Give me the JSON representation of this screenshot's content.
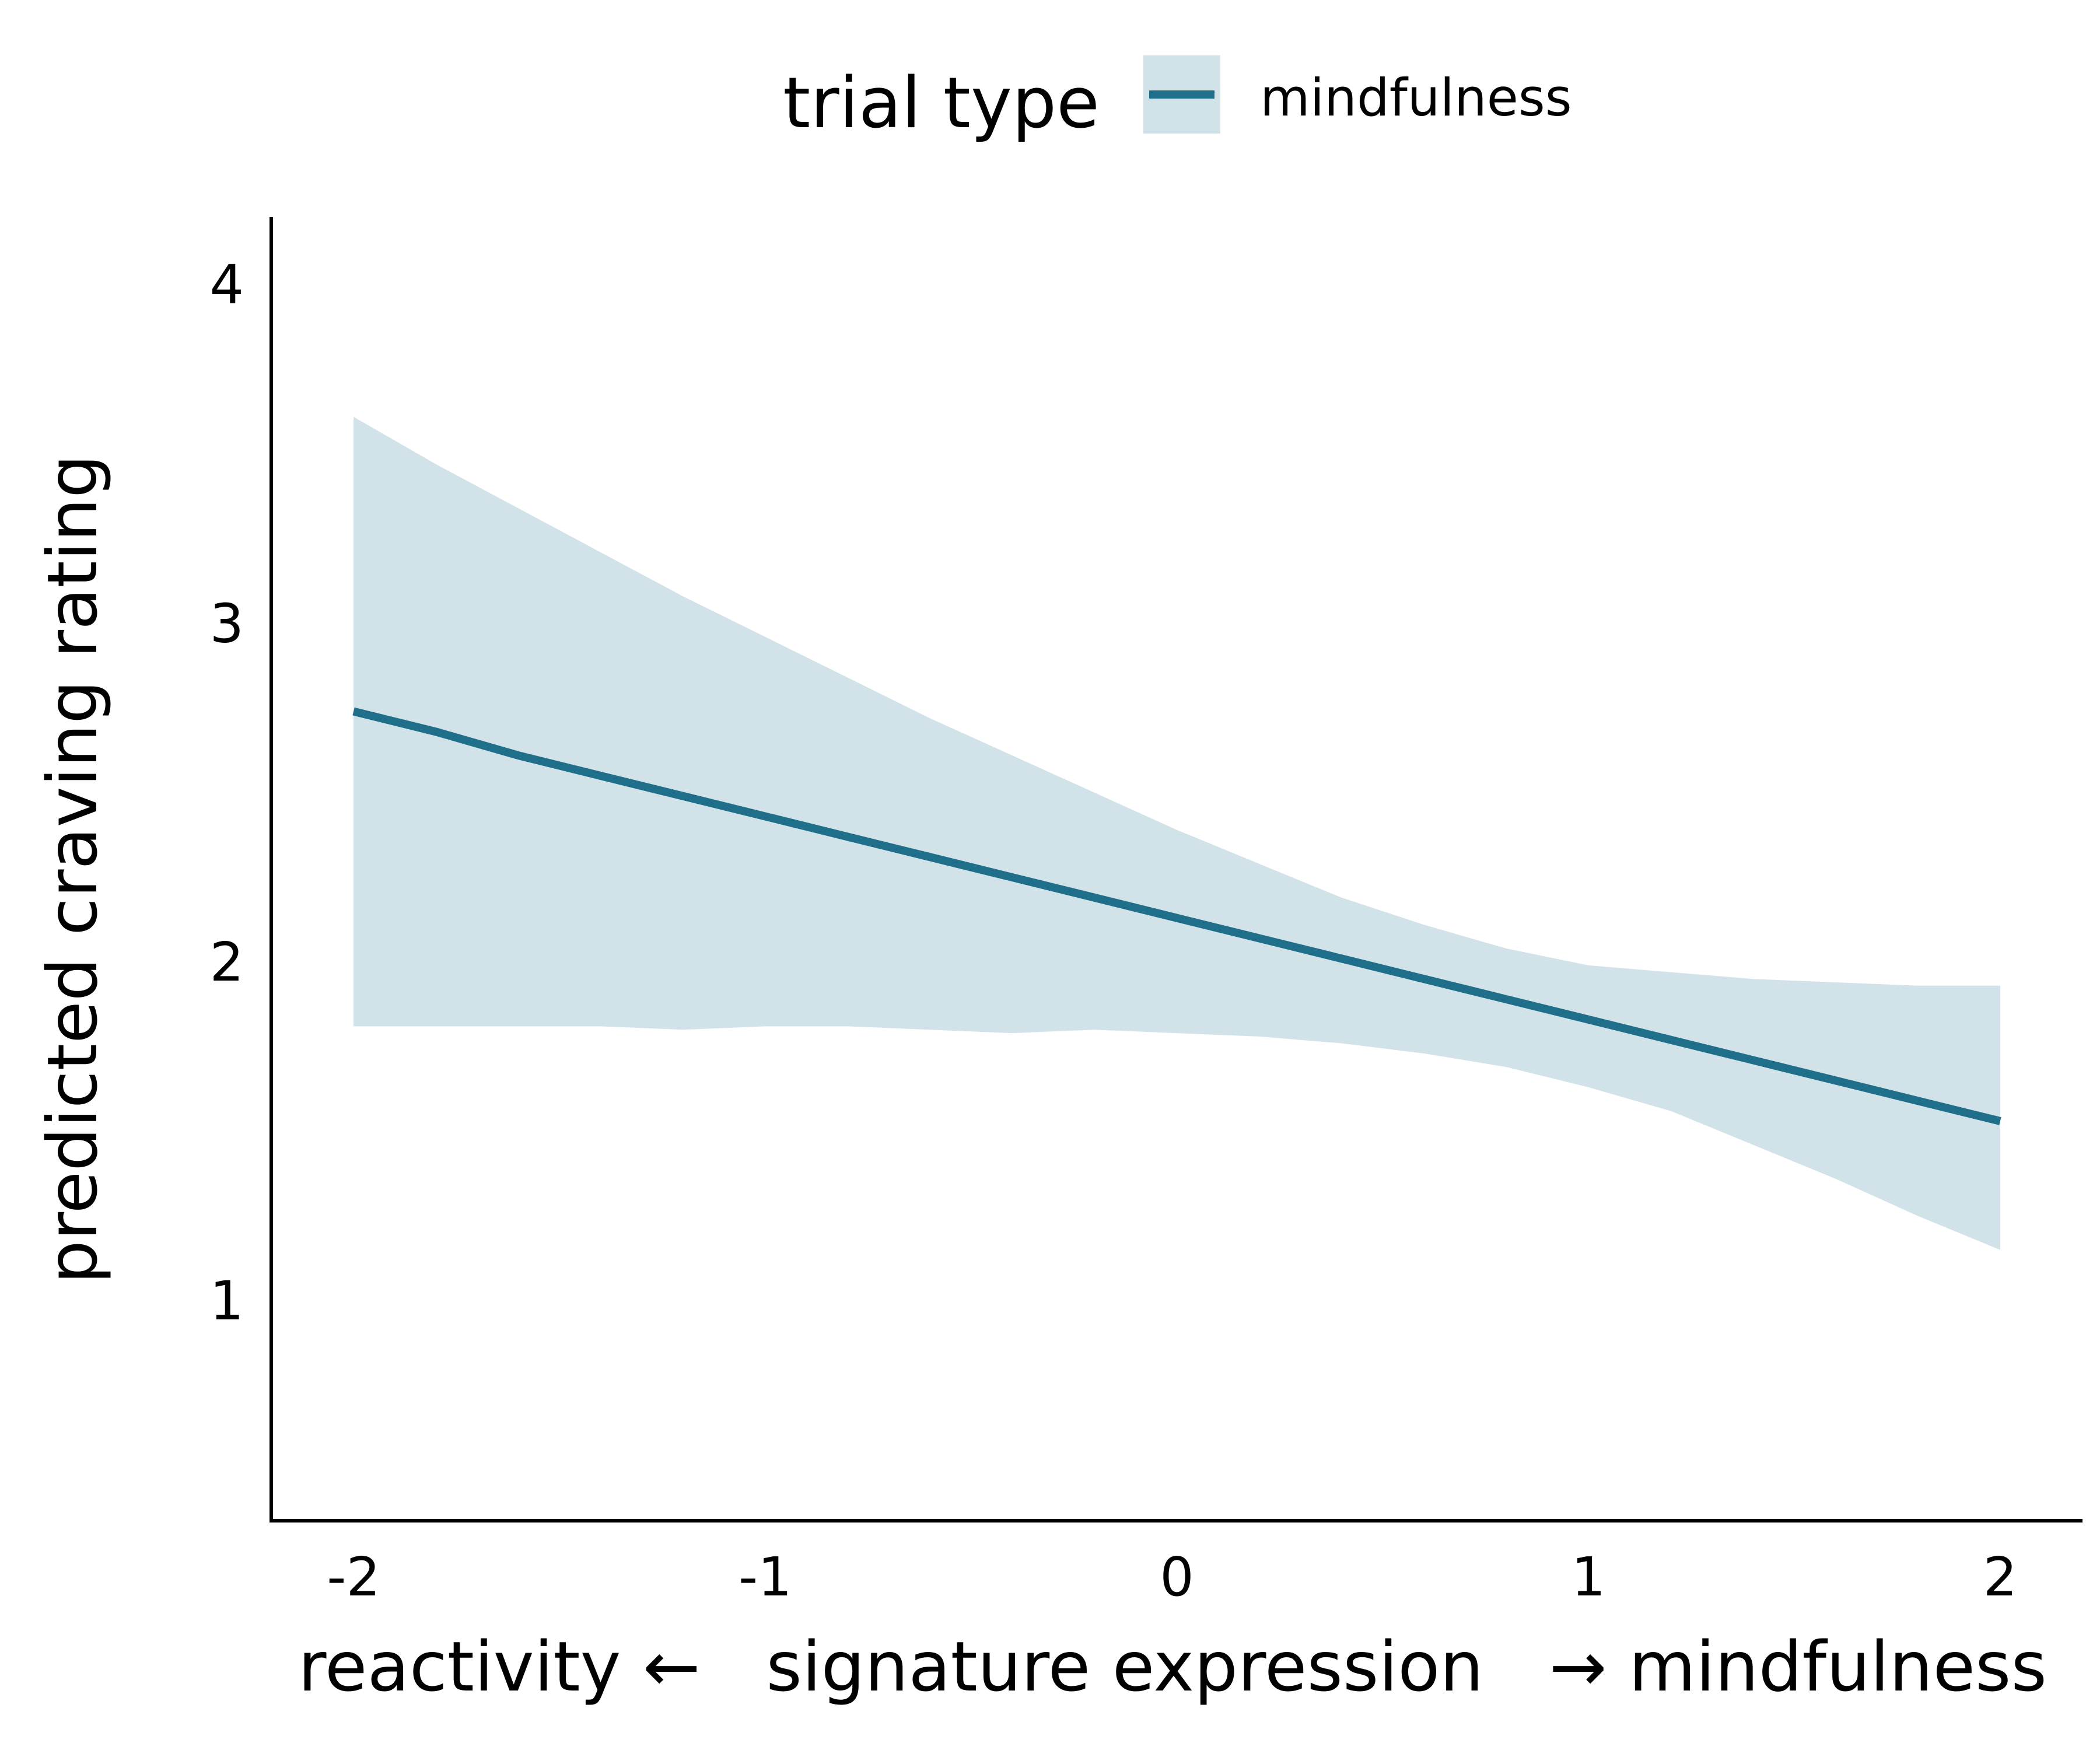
{
  "chart_data": {
    "type": "line",
    "title": "",
    "xlabel": "reactivity ←   signature expression   → mindfulness",
    "ylabel": "predicted craving rating",
    "xlim": [
      -2.2,
      2.2
    ],
    "ylim": [
      0.35,
      4.2
    ],
    "x_ticks": [
      -2,
      -1,
      0,
      1,
      2
    ],
    "y_ticks": [
      1,
      2,
      3,
      4
    ],
    "grid": false,
    "legend": {
      "title": "trial type",
      "position": "top"
    },
    "series": [
      {
        "name": "mindfulness",
        "color": "#1f6f8b",
        "band_color": "#d1e2e9",
        "x": [
          -2.0,
          -1.8,
          -1.6,
          -1.4,
          -1.2,
          -1.0,
          -0.8,
          -0.6,
          -0.4,
          -0.2,
          0.0,
          0.2,
          0.4,
          0.6,
          0.8,
          1.0,
          1.2,
          1.4,
          1.6,
          1.8,
          2.0
        ],
        "y": [
          2.74,
          2.68,
          2.61,
          2.55,
          2.49,
          2.43,
          2.37,
          2.31,
          2.25,
          2.19,
          2.13,
          2.07,
          2.01,
          1.95,
          1.89,
          1.83,
          1.77,
          1.71,
          1.65,
          1.59,
          1.53
        ],
        "ymin": [
          1.81,
          1.81,
          1.81,
          1.81,
          1.8,
          1.81,
          1.81,
          1.8,
          1.79,
          1.8,
          1.79,
          1.78,
          1.76,
          1.73,
          1.69,
          1.63,
          1.56,
          1.46,
          1.36,
          1.25,
          1.15
        ],
        "ymax": [
          3.61,
          3.47,
          3.34,
          3.21,
          3.08,
          2.96,
          2.84,
          2.72,
          2.61,
          2.5,
          2.39,
          2.29,
          2.19,
          2.11,
          2.04,
          1.99,
          1.97,
          1.95,
          1.94,
          1.93,
          1.93
        ]
      }
    ]
  }
}
